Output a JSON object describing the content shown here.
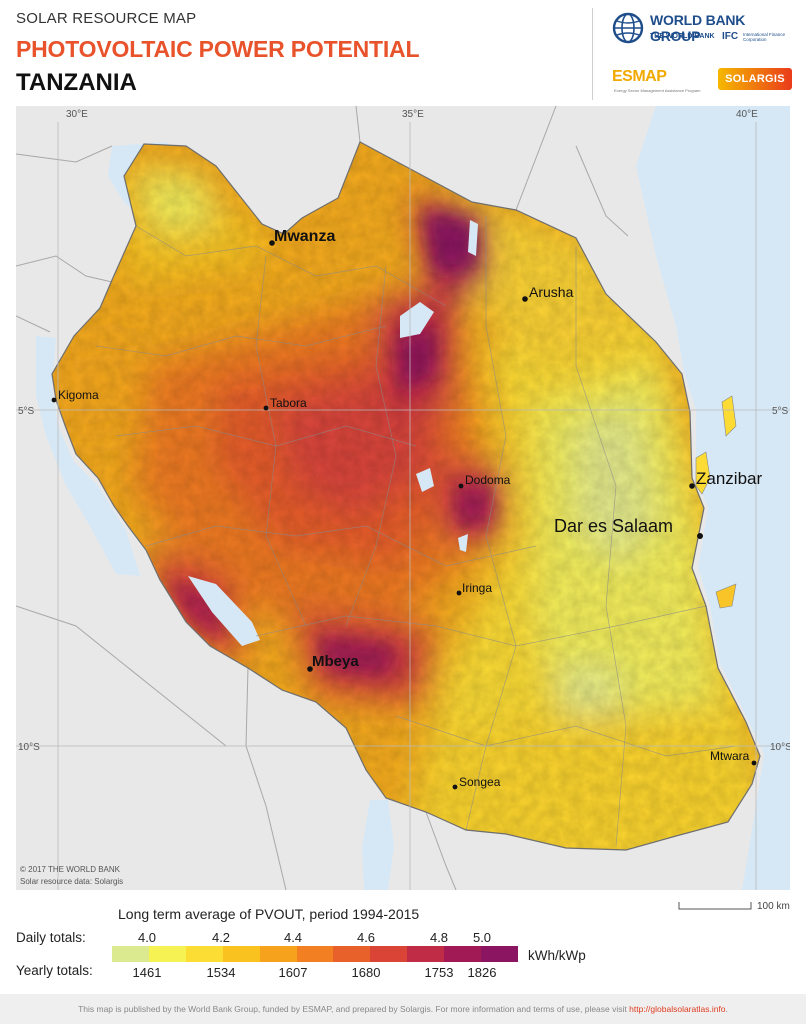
{
  "header": {
    "supertitle": "SOLAR RESOURCE MAP",
    "title": "PHOTOVOLTAIC POWER POTENTIAL",
    "country": "TANZANIA"
  },
  "logos": {
    "wbg": "WORLD BANK GROUP",
    "wbg_sub": "THE WORLD BANK",
    "ifc": "IFC",
    "ifc_sub": "International Finance Corporation",
    "esmap": "ESMAP",
    "esmap_sub": "Energy Sector Management Assistance Program",
    "solargis": "SOLARGIS"
  },
  "map": {
    "graticule": {
      "lon": [
        "30°E",
        "35°E",
        "40°E"
      ],
      "lat": [
        "5°S",
        "10°S"
      ]
    },
    "cities": [
      {
        "name": "Mwanza",
        "size": "large"
      },
      {
        "name": "Arusha",
        "size": "medium"
      },
      {
        "name": "Kigoma",
        "size": "small"
      },
      {
        "name": "Tabora",
        "size": "small"
      },
      {
        "name": "Dodoma",
        "size": "small"
      },
      {
        "name": "Zanzibar",
        "size": "large"
      },
      {
        "name": "Dar es Salaam",
        "size": "xlarge"
      },
      {
        "name": "Iringa",
        "size": "small"
      },
      {
        "name": "Mbeya",
        "size": "large"
      },
      {
        "name": "Songea",
        "size": "small"
      },
      {
        "name": "Mtwara",
        "size": "small"
      }
    ],
    "copyright": "© 2017 THE WORLD BANK",
    "source": "Solar resource data: Solargis",
    "colors": {
      "water": "#d6e8f6",
      "neighbors": "#e8e8e8",
      "border": "#9a9a9a"
    }
  },
  "legend": {
    "title": "Long term average of PVOUT, period 1994-2015",
    "daily_label": "Daily totals:",
    "yearly_label": "Yearly totals:",
    "daily_values": [
      "4.0",
      "4.2",
      "4.4",
      "4.6",
      "4.8",
      "5.0"
    ],
    "yearly_values": [
      "1461",
      "1534",
      "1607",
      "1680",
      "1753",
      "1826"
    ],
    "unit": "kWh/kWp",
    "scale_text": "100 km",
    "colors": [
      "#dcea8f",
      "#f6f254",
      "#fbdd33",
      "#fac21f",
      "#f7a21d",
      "#f27f22",
      "#e8602a",
      "#d94437",
      "#c02b45",
      "#a21a55",
      "#8b1560"
    ]
  },
  "footer": {
    "text": "This map is published by the World Bank Group, funded by ESMAP, and prepared by Solargis. For more information and terms of use, please visit",
    "link": "http://globalsolaratlas.info"
  }
}
